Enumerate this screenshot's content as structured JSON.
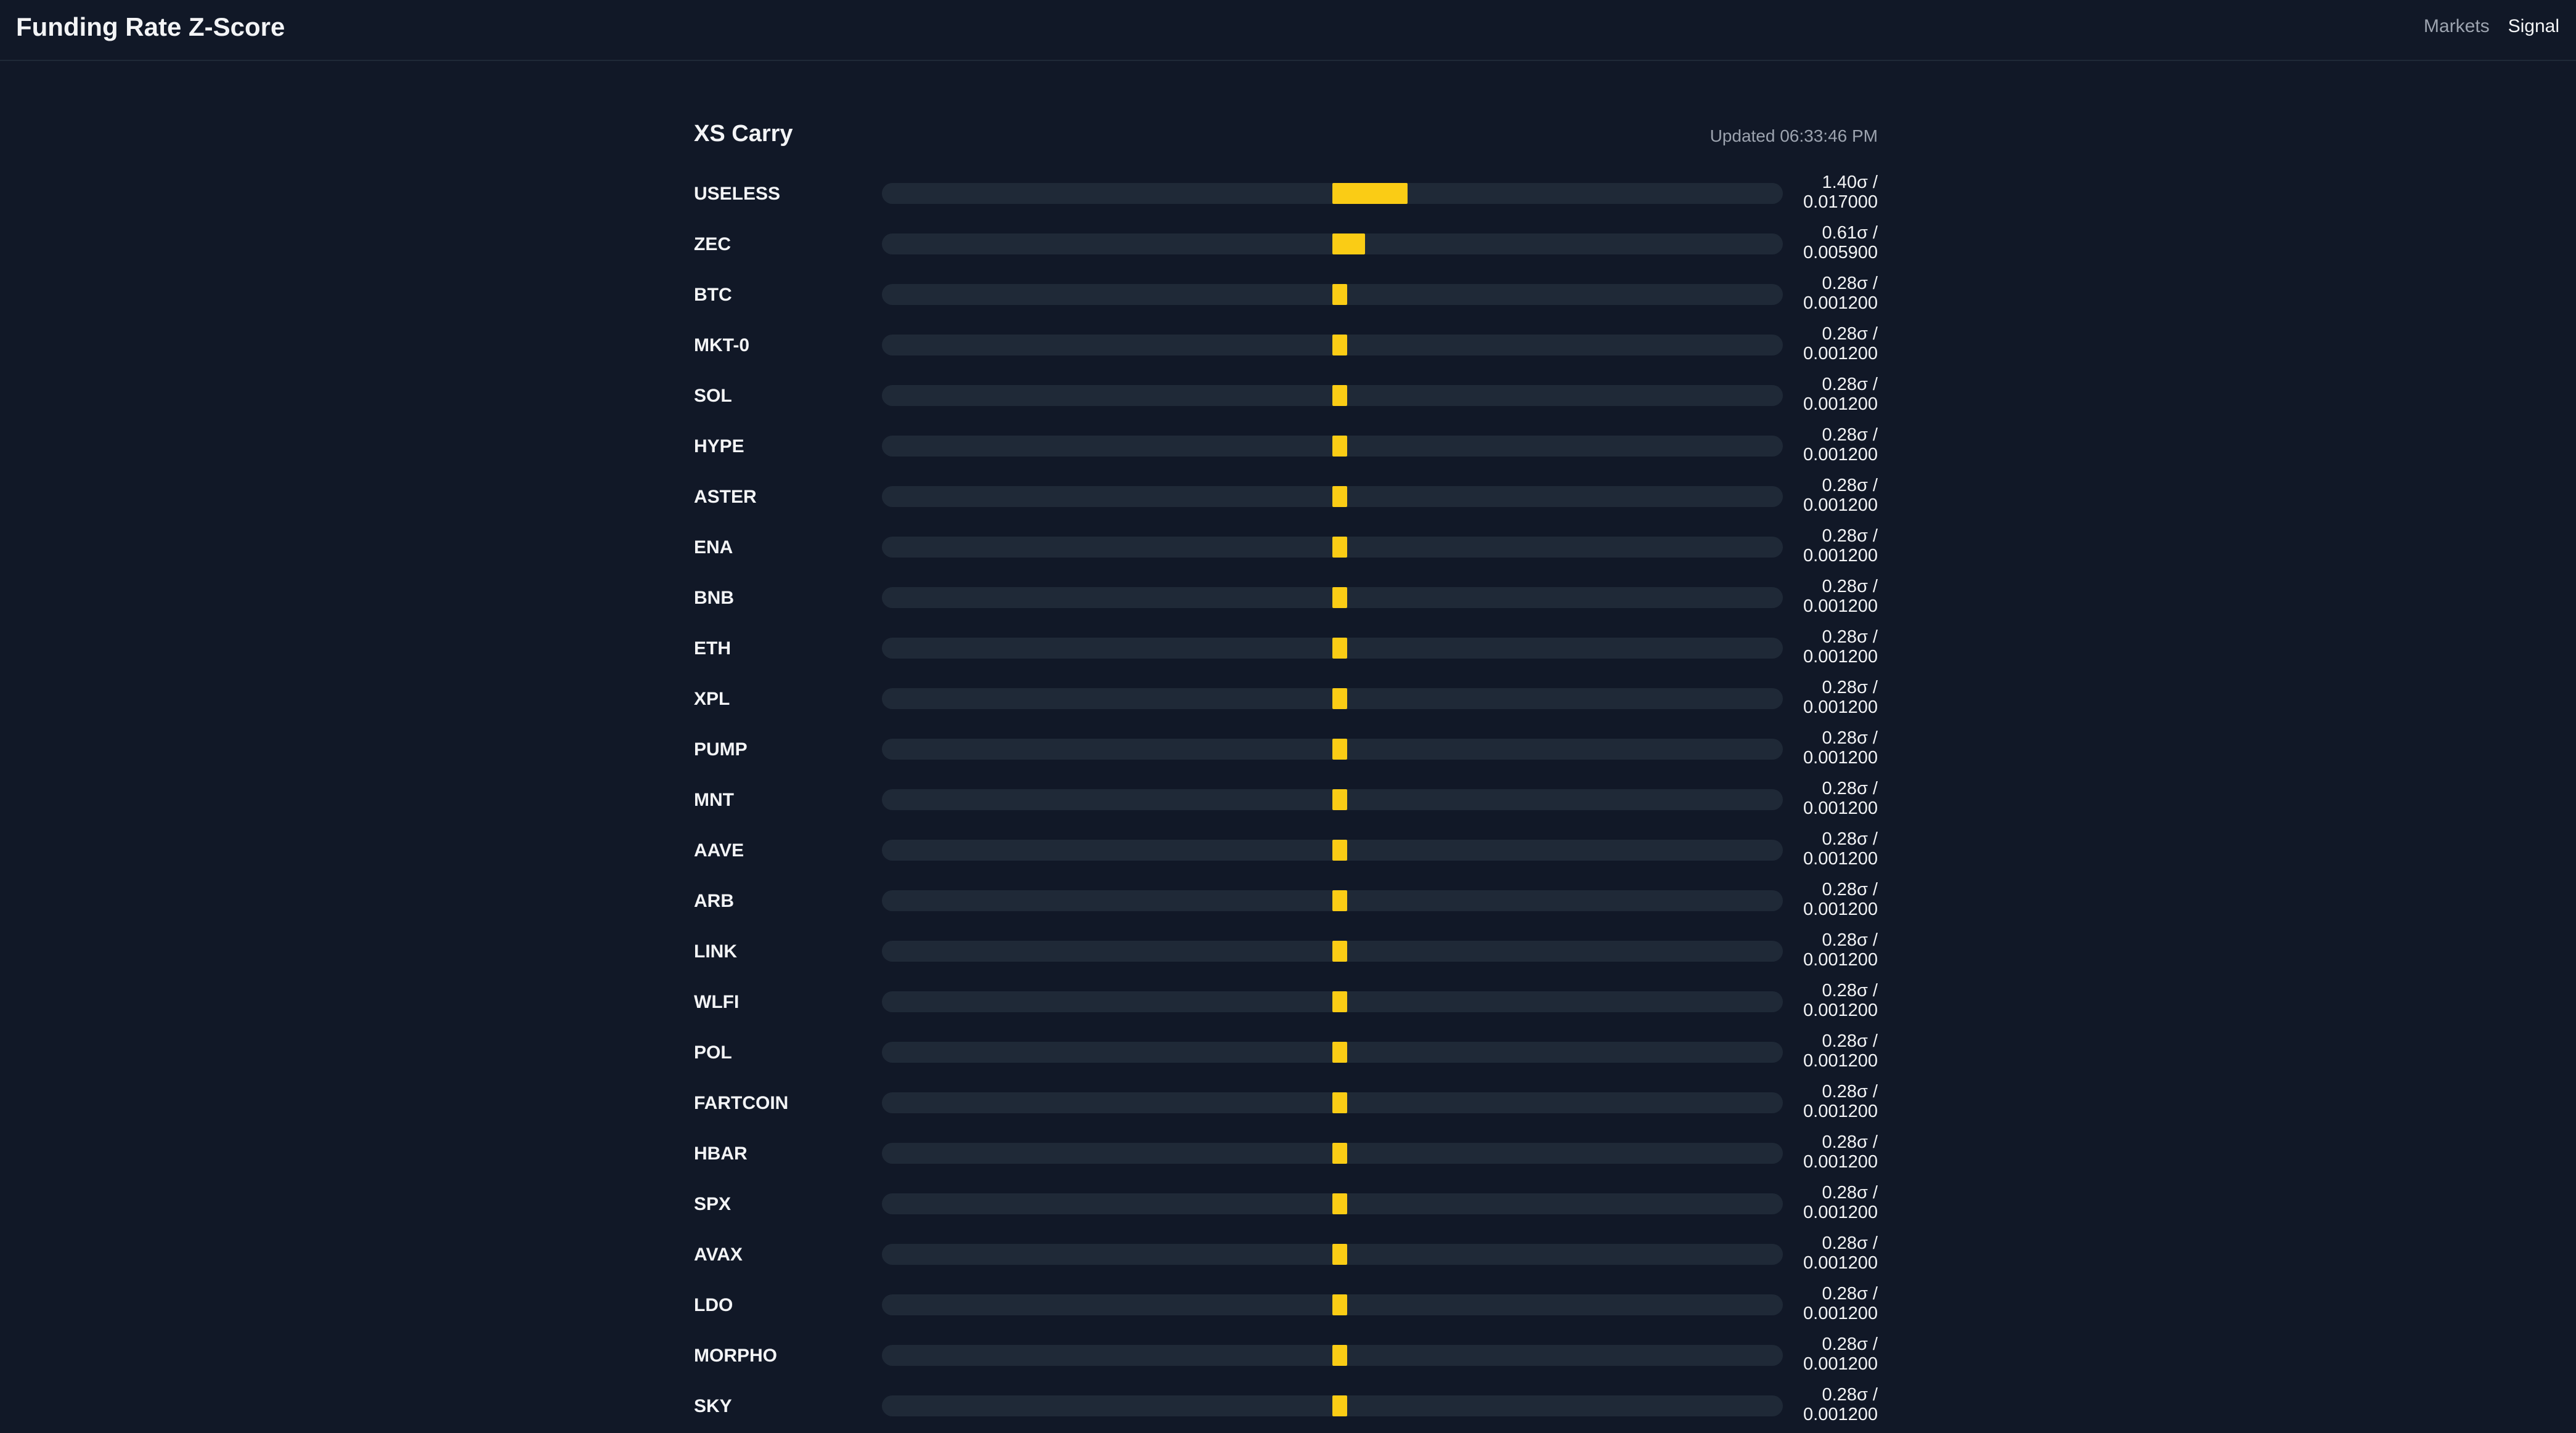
{
  "header": {
    "title": "Funding Rate Z-Score",
    "nav": [
      {
        "label": "Markets",
        "active": false
      },
      {
        "label": "Signal",
        "active": true
      }
    ]
  },
  "panel": {
    "title": "XS Carry",
    "updated": "Updated 06:33:46 PM"
  },
  "colors": {
    "background": "#111827",
    "track": "#1f2937",
    "bar": "#facc15"
  },
  "rows": [
    {
      "symbol": "USELESS",
      "z": 1.4,
      "z_label": "1.40σ /",
      "rate": "0.017000"
    },
    {
      "symbol": "ZEC",
      "z": 0.61,
      "z_label": "0.61σ /",
      "rate": "0.005900"
    },
    {
      "symbol": "BTC",
      "z": 0.28,
      "z_label": "0.28σ /",
      "rate": "0.001200"
    },
    {
      "symbol": "MKT-0",
      "z": 0.28,
      "z_label": "0.28σ /",
      "rate": "0.001200"
    },
    {
      "symbol": "SOL",
      "z": 0.28,
      "z_label": "0.28σ /",
      "rate": "0.001200"
    },
    {
      "symbol": "HYPE",
      "z": 0.28,
      "z_label": "0.28σ /",
      "rate": "0.001200"
    },
    {
      "symbol": "ASTER",
      "z": 0.28,
      "z_label": "0.28σ /",
      "rate": "0.001200"
    },
    {
      "symbol": "ENA",
      "z": 0.28,
      "z_label": "0.28σ /",
      "rate": "0.001200"
    },
    {
      "symbol": "BNB",
      "z": 0.28,
      "z_label": "0.28σ /",
      "rate": "0.001200"
    },
    {
      "symbol": "ETH",
      "z": 0.28,
      "z_label": "0.28σ /",
      "rate": "0.001200"
    },
    {
      "symbol": "XPL",
      "z": 0.28,
      "z_label": "0.28σ /",
      "rate": "0.001200"
    },
    {
      "symbol": "PUMP",
      "z": 0.28,
      "z_label": "0.28σ /",
      "rate": "0.001200"
    },
    {
      "symbol": "MNT",
      "z": 0.28,
      "z_label": "0.28σ /",
      "rate": "0.001200"
    },
    {
      "symbol": "AAVE",
      "z": 0.28,
      "z_label": "0.28σ /",
      "rate": "0.001200"
    },
    {
      "symbol": "ARB",
      "z": 0.28,
      "z_label": "0.28σ /",
      "rate": "0.001200"
    },
    {
      "symbol": "LINK",
      "z": 0.28,
      "z_label": "0.28σ /",
      "rate": "0.001200"
    },
    {
      "symbol": "WLFI",
      "z": 0.28,
      "z_label": "0.28σ /",
      "rate": "0.001200"
    },
    {
      "symbol": "POL",
      "z": 0.28,
      "z_label": "0.28σ /",
      "rate": "0.001200"
    },
    {
      "symbol": "FARTCOIN",
      "z": 0.28,
      "z_label": "0.28σ /",
      "rate": "0.001200"
    },
    {
      "symbol": "HBAR",
      "z": 0.28,
      "z_label": "0.28σ /",
      "rate": "0.001200"
    },
    {
      "symbol": "SPX",
      "z": 0.28,
      "z_label": "0.28σ /",
      "rate": "0.001200"
    },
    {
      "symbol": "AVAX",
      "z": 0.28,
      "z_label": "0.28σ /",
      "rate": "0.001200"
    },
    {
      "symbol": "LDO",
      "z": 0.28,
      "z_label": "0.28σ /",
      "rate": "0.001200"
    },
    {
      "symbol": "MORPHO",
      "z": 0.28,
      "z_label": "0.28σ /",
      "rate": "0.001200"
    },
    {
      "symbol": "SKY",
      "z": 0.28,
      "z_label": "0.28σ /",
      "rate": "0.001200"
    }
  ]
}
